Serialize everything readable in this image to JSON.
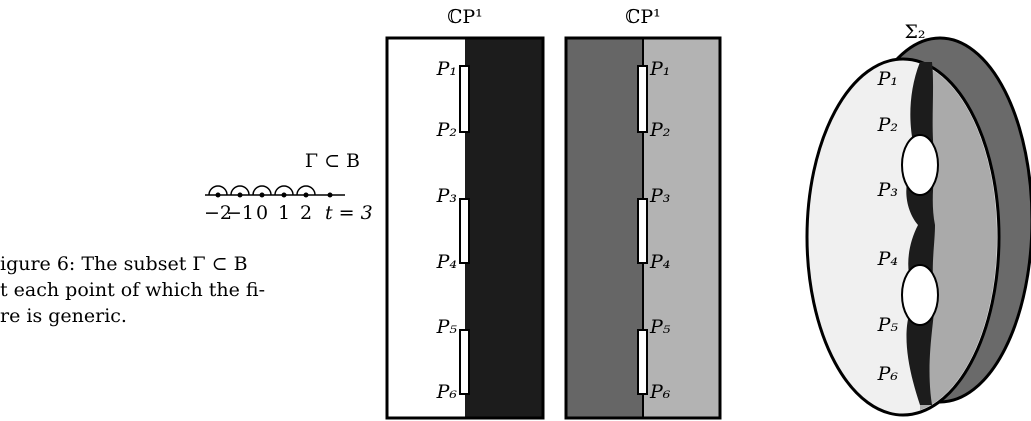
{
  "left_figure": {
    "label": "Γ ⊂ B",
    "points": [
      "−2",
      "−1",
      "0",
      "1",
      "2",
      "t = 3"
    ],
    "caption_lines": [
      "igure 6: The subset Γ ⊂ B",
      "t each point of which the fi-",
      "re is generic."
    ]
  },
  "middle_figure": {
    "panels": [
      {
        "title": "ℂP¹",
        "labels": [
          "P₁",
          "P₂",
          "P₃",
          "P₄",
          "P₅",
          "P₆"
        ]
      },
      {
        "title": "ℂP¹",
        "labels": [
          "P₁",
          "P₂",
          "P₃",
          "P₄",
          "P₅",
          "P₆"
        ]
      }
    ]
  },
  "right_figure": {
    "title": "Σ₂",
    "labels": [
      "P₁",
      "P₂",
      "P₃",
      "P₄",
      "P₅",
      "P₆"
    ]
  }
}
